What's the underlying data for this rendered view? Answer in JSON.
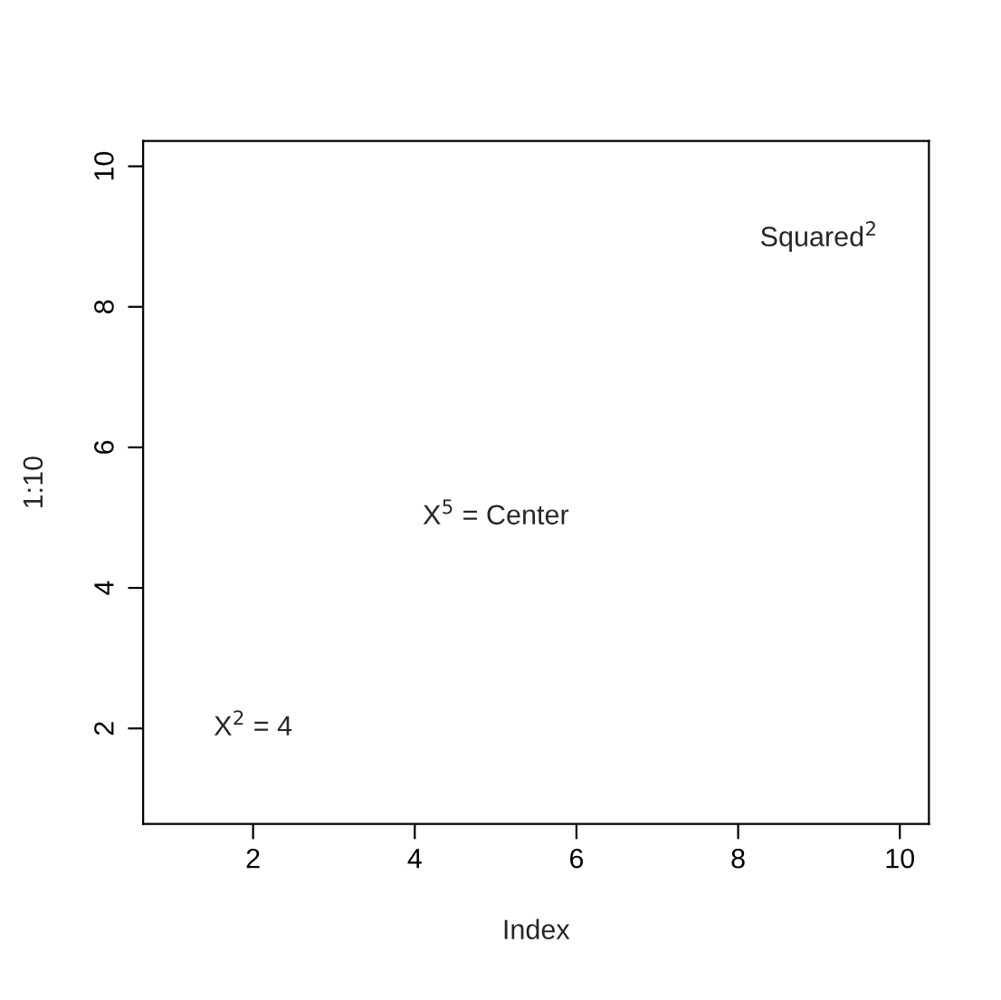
{
  "chart_data": {
    "type": "scatter",
    "xlabel": "Index",
    "ylabel": "1:10",
    "xlim": [
      0.64,
      10.36
    ],
    "ylim": [
      0.64,
      10.36
    ],
    "xticks": [
      2,
      4,
      6,
      8,
      10
    ],
    "yticks": [
      2,
      4,
      6,
      8,
      10
    ],
    "grid": false,
    "legend": false,
    "annotations": [
      "X$^{2}$ = 4",
      "X$^{5}$ = Center",
      "Squared$^{2}$"
    ]
  }
}
